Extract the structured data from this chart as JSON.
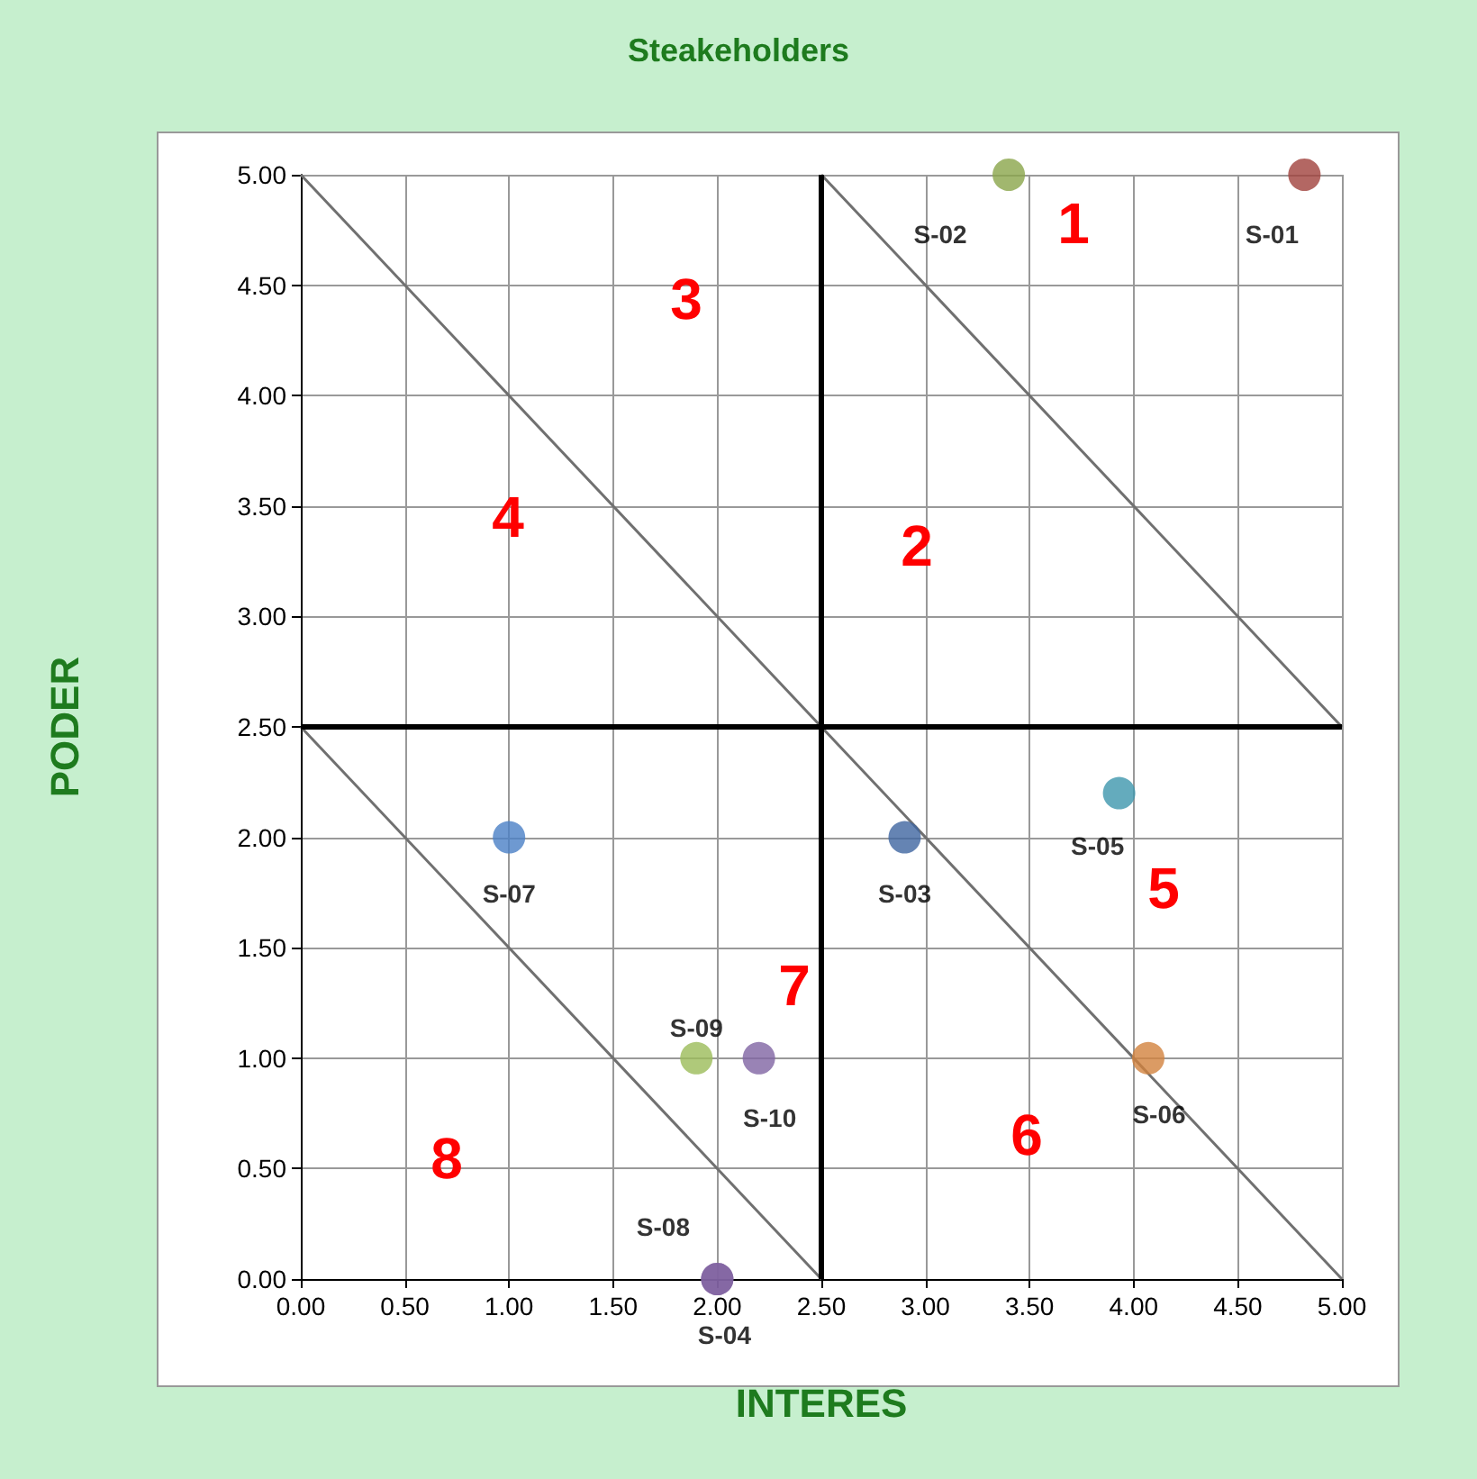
{
  "chart_data": {
    "type": "scatter",
    "title": "Steakeholders",
    "xlabel": "INTERES",
    "ylabel": "PODER",
    "xlim": [
      0,
      5
    ],
    "ylim": [
      0,
      5
    ],
    "xticks": [
      {
        "value": 0,
        "label": "0.00"
      },
      {
        "value": 0.5,
        "label": "0.50"
      },
      {
        "value": 1,
        "label": "1.00"
      },
      {
        "value": 1.5,
        "label": "1.50"
      },
      {
        "value": 2,
        "label": "2.00"
      },
      {
        "value": 2.5,
        "label": "2.50"
      },
      {
        "value": 3,
        "label": "3.00"
      },
      {
        "value": 3.5,
        "label": "3.50"
      },
      {
        "value": 4,
        "label": "4.00"
      },
      {
        "value": 4.5,
        "label": "4.50"
      },
      {
        "value": 5,
        "label": "5.00"
      }
    ],
    "yticks": [
      {
        "value": 0,
        "label": "0.00"
      },
      {
        "value": 0.5,
        "label": "0.50"
      },
      {
        "value": 1,
        "label": "1.00"
      },
      {
        "value": 1.5,
        "label": "1.50"
      },
      {
        "value": 2,
        "label": "2.00"
      },
      {
        "value": 2.5,
        "label": "2.50"
      },
      {
        "value": 3,
        "label": "3.00"
      },
      {
        "value": 3.5,
        "label": "3.50"
      },
      {
        "value": 4,
        "label": "4.00"
      },
      {
        "value": 4.5,
        "label": "4.50"
      },
      {
        "value": 5,
        "label": "5.00"
      }
    ],
    "grid": true,
    "legend": false,
    "marker": "circle",
    "series": [
      {
        "name": "S-01",
        "color": "#a0413c",
        "x": [
          4.82
        ],
        "values": [
          5.0
        ]
      },
      {
        "name": "S-02",
        "color": "#8aa54a",
        "x": [
          3.4
        ],
        "values": [
          5.0
        ]
      },
      {
        "name": "S-03",
        "color": "#3f65a0",
        "x": [
          2.9
        ],
        "values": [
          2.0
        ]
      },
      {
        "name": "S-08",
        "color": "#7f62a0",
        "x": [
          2.0
        ],
        "values": [
          0.0
        ]
      },
      {
        "name": "S-04",
        "color": "#7f62a0",
        "x": [
          2.0
        ],
        "values": [
          0.0
        ]
      },
      {
        "name": "S-05",
        "color": "#3d96ad",
        "x": [
          3.93
        ],
        "values": [
          2.2
        ]
      },
      {
        "name": "S-06",
        "color": "#d2823d",
        "x": [
          4.07
        ],
        "values": [
          1.0
        ]
      },
      {
        "name": "S-07",
        "color": "#4a7fc6",
        "x": [
          1.0
        ],
        "values": [
          2.0
        ]
      },
      {
        "name": "S-09",
        "color": "#9bbb59",
        "x": [
          1.9
        ],
        "values": [
          1.0
        ]
      },
      {
        "name": "S-10",
        "color": "#8064a2",
        "x": [
          2.2
        ],
        "values": [
          1.0
        ]
      },
      {
        "type": "line",
        "marker": "none",
        "color": "#707070",
        "x": [
          0,
          5
        ],
        "values": [
          5,
          0
        ]
      },
      {
        "type": "line",
        "marker": "none",
        "color": "#707070",
        "x": [
          2.5,
          5
        ],
        "values": [
          5,
          2.5
        ]
      },
      {
        "type": "line",
        "marker": "none",
        "color": "#707070",
        "x": [
          0,
          2.5
        ],
        "values": [
          2.5,
          0
        ]
      },
      {
        "type": "line",
        "marker": "none",
        "color": "#000000",
        "x": [
          2.5,
          2.5
        ],
        "values": [
          0,
          5
        ]
      },
      {
        "type": "line",
        "marker": "none",
        "color": "#000000",
        "x": [
          0,
          5
        ],
        "values": [
          2.5,
          2.5
        ]
      }
    ],
    "annotations": [
      "1",
      "2",
      "3",
      "4",
      "5",
      "6",
      "7",
      "8"
    ]
  }
}
